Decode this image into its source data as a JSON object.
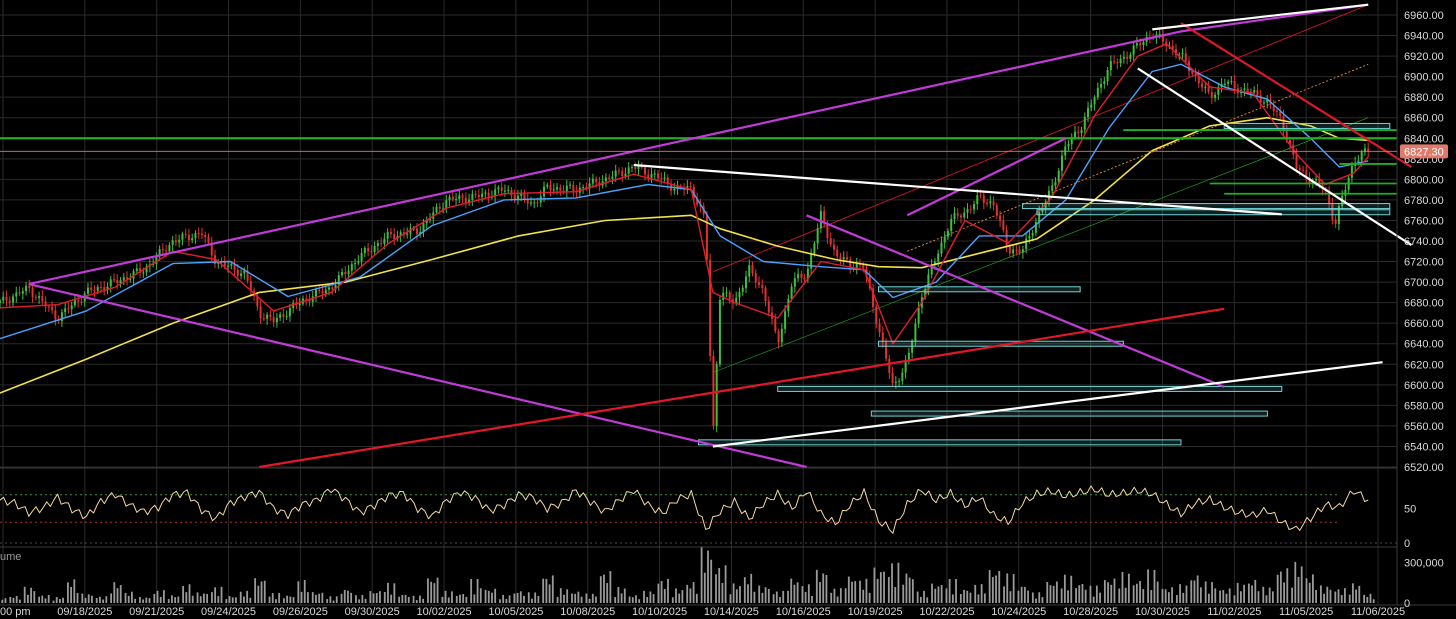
{
  "chart_data": {
    "type": "candlestick",
    "colors": {
      "up": "#3fbf3f",
      "down": "#e03131",
      "background": "#000000",
      "grid": "#2a2a2a",
      "ema_fast": "#e11d2e",
      "ema_mid": "#4aa3ff",
      "ema_slow": "#f2e14a",
      "wedge": "#c13bd8",
      "trendline_white": "#ffffff",
      "trendline_red": "#e0182a",
      "level_green": "#1fae1f",
      "zone_teal": "#6fd4d4",
      "price_tag": "#e07a6b",
      "rsi_line": "#f3d8a0"
    },
    "x_ticks": [
      "00 pm",
      "09/18/2025",
      "09/21/2025",
      "09/24/2025",
      "09/26/2025",
      "09/30/2025",
      "10/02/2025",
      "10/05/2025",
      "10/08/2025",
      "10/10/2025",
      "10/14/2025",
      "10/16/2025",
      "10/19/2025",
      "10/22/2025",
      "10/24/2025",
      "10/28/2025",
      "10/30/2025",
      "11/02/2025",
      "11/05/2025",
      "11/06/2025"
    ],
    "price_axis": {
      "ylim": [
        6520,
        6960
      ],
      "ticks": [
        "6960.00",
        "6940.00",
        "6920.00",
        "6900.00",
        "6880.00",
        "6860.00",
        "6840.00",
        "6820.00",
        "6800.00",
        "6780.00",
        "6760.00",
        "6740.00",
        "6720.00",
        "6700.00",
        "6680.00",
        "6660.00",
        "6640.00",
        "6620.00",
        "6600.00",
        "6580.00",
        "6560.00",
        "6540.00",
        "6520.00"
      ]
    },
    "last_price_label": "6827.30",
    "last_price": 6827.3,
    "price_path": [
      [
        0,
        6680
      ],
      [
        2,
        6694
      ],
      [
        4,
        6665
      ],
      [
        6,
        6690
      ],
      [
        8,
        6700
      ],
      [
        10,
        6712
      ],
      [
        12,
        6740
      ],
      [
        14,
        6748
      ],
      [
        15,
        6720
      ],
      [
        17,
        6708
      ],
      [
        18,
        6670
      ],
      [
        19,
        6662
      ],
      [
        21,
        6682
      ],
      [
        23,
        6695
      ],
      [
        25,
        6725
      ],
      [
        27,
        6745
      ],
      [
        29,
        6750
      ],
      [
        31,
        6780
      ],
      [
        33,
        6783
      ],
      [
        35,
        6790
      ],
      [
        37,
        6776
      ],
      [
        38,
        6792
      ],
      [
        40,
        6790
      ],
      [
        42,
        6800
      ],
      [
        44,
        6812
      ],
      [
        46,
        6800
      ],
      [
        47,
        6790
      ],
      [
        48,
        6792
      ],
      [
        49,
        6758
      ],
      [
        49.5,
        6548
      ],
      [
        50,
        6690
      ],
      [
        51,
        6680
      ],
      [
        52,
        6712
      ],
      [
        53,
        6692
      ],
      [
        54,
        6640
      ],
      [
        55,
        6700
      ],
      [
        56,
        6708
      ],
      [
        57,
        6765
      ],
      [
        58,
        6726
      ],
      [
        59,
        6718
      ],
      [
        60,
        6714
      ],
      [
        61,
        6655
      ],
      [
        62,
        6598
      ],
      [
        63,
        6622
      ],
      [
        64,
        6688
      ],
      [
        66,
        6760
      ],
      [
        67,
        6768
      ],
      [
        68,
        6782
      ],
      [
        69,
        6776
      ],
      [
        70,
        6732
      ],
      [
        71,
        6730
      ],
      [
        72,
        6762
      ],
      [
        73,
        6790
      ],
      [
        74,
        6832
      ],
      [
        75,
        6850
      ],
      [
        76,
        6880
      ],
      [
        77,
        6910
      ],
      [
        78,
        6918
      ],
      [
        79,
        6930
      ],
      [
        80,
        6942
      ],
      [
        81,
        6932
      ],
      [
        82,
        6920
      ],
      [
        83,
        6900
      ],
      [
        84,
        6880
      ],
      [
        85,
        6895
      ],
      [
        86,
        6888
      ],
      [
        87,
        6884
      ],
      [
        88,
        6875
      ],
      [
        89,
        6858
      ],
      [
        90,
        6812
      ],
      [
        91,
        6800
      ],
      [
        92,
        6790
      ],
      [
        92.7,
        6756
      ],
      [
        93.2,
        6782
      ],
      [
        94,
        6818
      ],
      [
        95,
        6828
      ]
    ],
    "ema_fast": [
      [
        0,
        6675
      ],
      [
        4,
        6678
      ],
      [
        8,
        6695
      ],
      [
        12,
        6730
      ],
      [
        15,
        6722
      ],
      [
        19,
        6672
      ],
      [
        23,
        6690
      ],
      [
        27,
        6738
      ],
      [
        31,
        6772
      ],
      [
        35,
        6786
      ],
      [
        40,
        6788
      ],
      [
        44,
        6805
      ],
      [
        48,
        6790
      ],
      [
        49.5,
        6690
      ],
      [
        51,
        6680
      ],
      [
        54,
        6665
      ],
      [
        57,
        6720
      ],
      [
        60,
        6712
      ],
      [
        62,
        6640
      ],
      [
        64,
        6680
      ],
      [
        67,
        6760
      ],
      [
        70,
        6738
      ],
      [
        73,
        6782
      ],
      [
        76,
        6862
      ],
      [
        79,
        6920
      ],
      [
        81,
        6932
      ],
      [
        84,
        6890
      ],
      [
        87,
        6884
      ],
      [
        90,
        6825
      ],
      [
        92,
        6795
      ],
      [
        94,
        6806
      ],
      [
        95,
        6822
      ]
    ],
    "ema_mid": [
      [
        0,
        6645
      ],
      [
        6,
        6672
      ],
      [
        12,
        6718
      ],
      [
        16,
        6720
      ],
      [
        20,
        6686
      ],
      [
        25,
        6705
      ],
      [
        30,
        6755
      ],
      [
        35,
        6780
      ],
      [
        40,
        6782
      ],
      [
        45,
        6795
      ],
      [
        48,
        6790
      ],
      [
        50,
        6745
      ],
      [
        53,
        6720
      ],
      [
        57,
        6715
      ],
      [
        60,
        6712
      ],
      [
        62,
        6685
      ],
      [
        65,
        6700
      ],
      [
        68,
        6745
      ],
      [
        71,
        6745
      ],
      [
        74,
        6780
      ],
      [
        77,
        6850
      ],
      [
        80,
        6905
      ],
      [
        82,
        6912
      ],
      [
        85,
        6890
      ],
      [
        88,
        6878
      ],
      [
        91,
        6840
      ],
      [
        93,
        6812
      ],
      [
        95,
        6818
      ]
    ],
    "ema_slow": [
      [
        0,
        6592
      ],
      [
        6,
        6625
      ],
      [
        12,
        6660
      ],
      [
        18,
        6690
      ],
      [
        24,
        6700
      ],
      [
        30,
        6722
      ],
      [
        36,
        6745
      ],
      [
        42,
        6760
      ],
      [
        48,
        6765
      ],
      [
        50,
        6752
      ],
      [
        54,
        6735
      ],
      [
        58,
        6722
      ],
      [
        61,
        6715
      ],
      [
        64,
        6714
      ],
      [
        68,
        6728
      ],
      [
        72,
        6742
      ],
      [
        76,
        6780
      ],
      [
        80,
        6828
      ],
      [
        84,
        6852
      ],
      [
        88,
        6860
      ],
      [
        91,
        6852
      ],
      [
        93,
        6840
      ],
      [
        95,
        6838
      ]
    ],
    "drawings": {
      "wedge_upper": [
        [
          2,
          6698
        ],
        [
          82,
          6944
        ],
        [
          95,
          6970
        ]
      ],
      "wedge_lower": [
        [
          2,
          6698
        ],
        [
          56,
          6520
        ]
      ],
      "wedge_mid": [
        [
          56,
          6765
        ],
        [
          85,
          6598
        ]
      ],
      "wedge_short": [
        [
          63,
          6765
        ],
        [
          74,
          6840
        ]
      ],
      "white_top": [
        [
          80,
          6946
        ],
        [
          95,
          6970
        ]
      ],
      "white_down": [
        [
          79,
          6908
        ],
        [
          98,
          6736
        ]
      ],
      "white_mid": [
        [
          44,
          6814
        ],
        [
          89,
          6766
        ]
      ],
      "white_low": [
        [
          49.5,
          6540
        ],
        [
          96,
          6622
        ]
      ],
      "red_upper": [
        [
          82,
          6952
        ],
        [
          98,
          6812
        ]
      ],
      "red_low": [
        [
          18,
          6520
        ],
        [
          85,
          6674
        ]
      ],
      "red_thin": [
        [
          49.5,
          6710
        ],
        [
          95,
          6970
        ]
      ],
      "orange_thin_dotted": [
        [
          63,
          6730
        ],
        [
          95,
          6912
        ]
      ],
      "green_thin": [
        [
          49.5,
          6612
        ],
        [
          95,
          6860
        ]
      ],
      "green_levels": [
        {
          "from": 0,
          "to": 97,
          "price": 6840
        },
        {
          "from": 78,
          "to": 97,
          "price": 6848
        },
        {
          "from": 93,
          "to": 97,
          "price": 6815
        },
        {
          "from": 84,
          "to": 97,
          "price": 6796
        },
        {
          "from": 85,
          "to": 97,
          "price": 6786
        }
      ],
      "teal_zones": [
        {
          "from": 85,
          "to": 96.5,
          "price": 6852
        },
        {
          "from": 71,
          "to": 96.5,
          "price": 6774
        },
        {
          "from": 72,
          "to": 96.5,
          "price": 6768
        },
        {
          "from": 61,
          "to": 75,
          "price": 6693
        },
        {
          "from": 61,
          "to": 78,
          "price": 6640
        },
        {
          "from": 54,
          "to": 89,
          "price": 6596
        },
        {
          "from": 60.5,
          "to": 88,
          "price": 6572
        },
        {
          "from": 48.5,
          "to": 82,
          "price": 6544
        }
      ]
    },
    "rsi": {
      "ylim": [
        0,
        100
      ],
      "ticks": [
        "50",
        "0"
      ],
      "overbought": 70,
      "oversold": 30,
      "values": [
        62,
        58,
        44,
        51,
        66,
        49,
        38,
        60,
        71,
        55,
        45,
        52,
        70,
        73,
        48,
        35,
        58,
        67,
        74,
        50,
        41,
        56,
        62,
        79,
        63,
        44,
        55,
        69,
        72,
        50,
        38,
        61,
        74,
        65,
        47,
        55,
        70,
        66,
        50,
        58,
        76,
        60,
        45,
        62,
        77,
        55,
        43,
        63,
        71,
        20,
        46,
        60,
        35,
        57,
        71,
        50,
        76,
        42,
        28,
        55,
        73,
        32,
        18,
        56,
        77,
        62,
        72,
        54,
        66,
        40,
        30,
        58,
        71,
        75,
        68,
        73,
        78,
        70,
        72,
        76,
        71,
        56,
        42,
        58,
        63,
        52,
        44,
        40,
        48,
        30,
        19,
        36,
        55,
        52,
        76,
        62
      ]
    },
    "volume": {
      "title": "ume",
      "ylim": [
        0,
        400000
      ],
      "ticks": [
        "300,000",
        "0"
      ],
      "values": [
        40000,
        55000,
        120000,
        60000,
        45000,
        180000,
        70000,
        50000,
        160000,
        85000,
        45000,
        95000,
        60000,
        140000,
        80000,
        120000,
        55000,
        90000,
        190000,
        75000,
        60000,
        170000,
        85000,
        50000,
        110000,
        60000,
        95000,
        150000,
        70000,
        55000,
        200000,
        90000,
        75000,
        180000,
        110000,
        60000,
        95000,
        80000,
        210000,
        110000,
        90000,
        70000,
        240000,
        120000,
        60000,
        90000,
        180000,
        110000,
        160000,
        420000,
        280000,
        150000,
        220000,
        130000,
        90000,
        190000,
        140000,
        250000,
        110000,
        210000,
        180000,
        270000,
        300000,
        240000,
        90000,
        150000,
        180000,
        110000,
        140000,
        260000,
        220000,
        140000,
        80000,
        170000,
        210000,
        160000,
        130000,
        190000,
        230000,
        180000,
        250000,
        120000,
        140000,
        220000,
        160000,
        110000,
        150000,
        180000,
        120000,
        260000,
        310000,
        220000,
        130000,
        110000,
        150000,
        70000
      ]
    }
  }
}
